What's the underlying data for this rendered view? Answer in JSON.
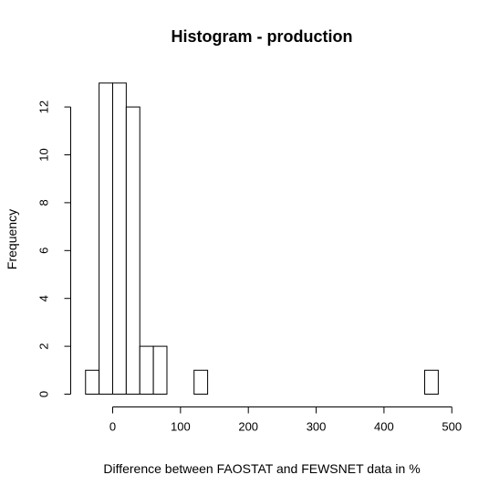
{
  "chart_data": {
    "type": "bar",
    "title": "Histogram - production",
    "xlabel": "Difference between FAOSTAT and FEWSNET data in %",
    "ylabel": "Frequency",
    "bin_width": 20,
    "bins": [
      {
        "start": -40,
        "end": -20,
        "count": 1
      },
      {
        "start": -20,
        "end": 0,
        "count": 13
      },
      {
        "start": 0,
        "end": 20,
        "count": 13
      },
      {
        "start": 20,
        "end": 40,
        "count": 12
      },
      {
        "start": 40,
        "end": 60,
        "count": 2
      },
      {
        "start": 60,
        "end": 80,
        "count": 2
      },
      {
        "start": 80,
        "end": 100,
        "count": 0
      },
      {
        "start": 100,
        "end": 120,
        "count": 0
      },
      {
        "start": 120,
        "end": 140,
        "count": 1
      },
      {
        "start": 140,
        "end": 160,
        "count": 0
      },
      {
        "start": 160,
        "end": 180,
        "count": 0
      },
      {
        "start": 180,
        "end": 200,
        "count": 0
      },
      {
        "start": 200,
        "end": 220,
        "count": 0
      },
      {
        "start": 220,
        "end": 240,
        "count": 0
      },
      {
        "start": 240,
        "end": 260,
        "count": 0
      },
      {
        "start": 260,
        "end": 280,
        "count": 0
      },
      {
        "start": 280,
        "end": 300,
        "count": 0
      },
      {
        "start": 300,
        "end": 320,
        "count": 0
      },
      {
        "start": 320,
        "end": 340,
        "count": 0
      },
      {
        "start": 340,
        "end": 360,
        "count": 0
      },
      {
        "start": 360,
        "end": 380,
        "count": 0
      },
      {
        "start": 380,
        "end": 400,
        "count": 0
      },
      {
        "start": 400,
        "end": 420,
        "count": 0
      },
      {
        "start": 420,
        "end": 440,
        "count": 0
      },
      {
        "start": 440,
        "end": 460,
        "count": 0
      },
      {
        "start": 460,
        "end": 480,
        "count": 1
      }
    ],
    "x_ticks": [
      0,
      100,
      200,
      300,
      400,
      500
    ],
    "y_ticks": [
      0,
      2,
      4,
      6,
      8,
      10,
      12
    ],
    "xlim": [
      -40,
      500
    ],
    "ylim": [
      0,
      13
    ],
    "grid": false,
    "colors": {
      "bar_fill": "#ffffff",
      "bar_stroke": "#000000",
      "axis": "#000000",
      "background": "#ffffff"
    }
  }
}
